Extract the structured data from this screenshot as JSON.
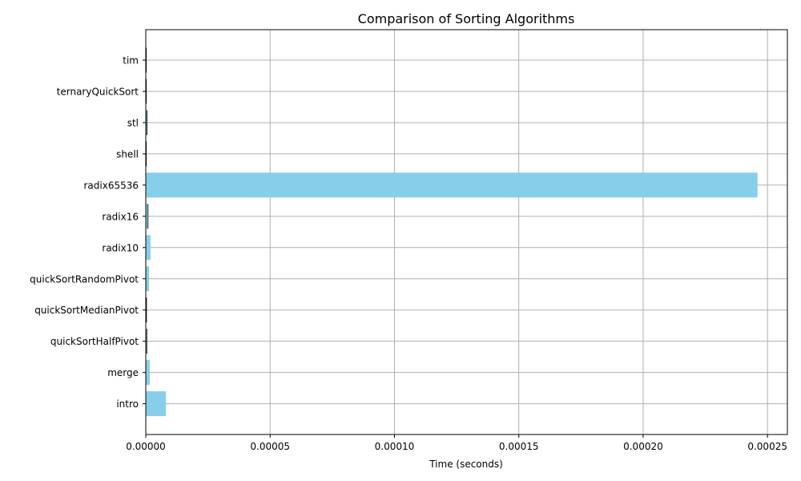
{
  "chart_data": {
    "type": "bar",
    "orientation": "horizontal",
    "title": "Comparison of Sorting Algorithms",
    "xlabel": "Time (seconds)",
    "ylabel": "",
    "categories": [
      "intro",
      "merge",
      "quickSortHalfPivot",
      "quickSortMedianPivot",
      "quickSortRandomPivot",
      "radix10",
      "radix16",
      "radix65536",
      "shell",
      "stl",
      "ternaryQuickSort",
      "tim"
    ],
    "values": [
      8.1e-06,
      1.6e-06,
      4e-07,
      3e-07,
      1.3e-06,
      1.9e-06,
      9e-07,
      0.000246,
      2e-07,
      5e-07,
      2e-07,
      2e-07
    ],
    "x_ticks": [
      "0.00000",
      "0.00005",
      "0.00010",
      "0.00015",
      "0.00020",
      "0.00025"
    ],
    "x_tick_values": [
      0,
      5e-05,
      0.0001,
      0.00015,
      0.0002,
      0.00025
    ],
    "xlim": [
      0,
      0.000258
    ],
    "grid": true,
    "bar_color": "#87ceeb",
    "edge_color": "#000000"
  }
}
